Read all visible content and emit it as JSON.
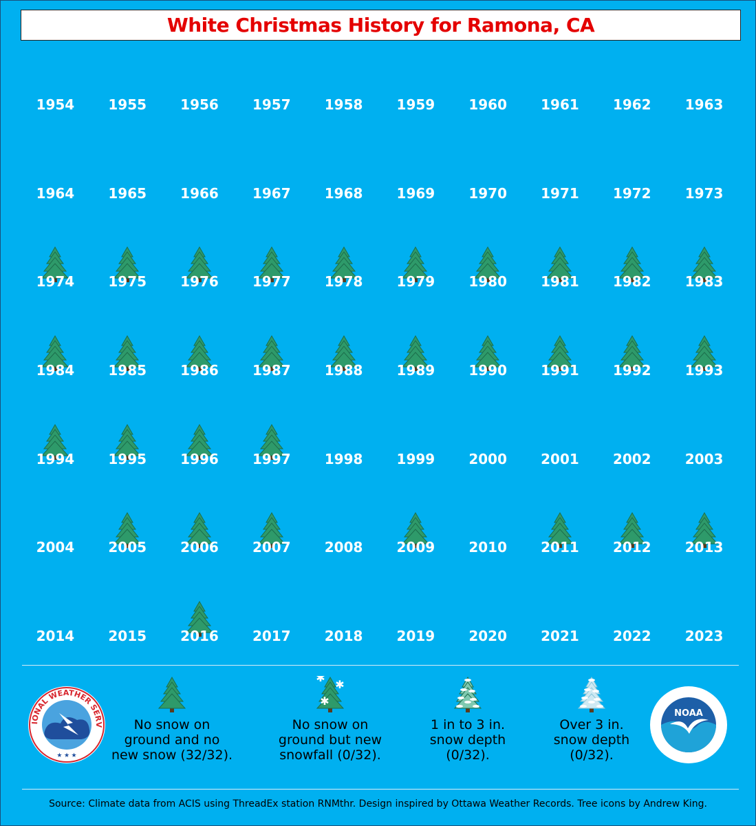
{
  "title": "White Christmas History for Ramona, CA",
  "chart_data": {
    "type": "table",
    "columns": 10,
    "years": [
      1954,
      1955,
      1956,
      1957,
      1958,
      1959,
      1960,
      1961,
      1962,
      1963,
      1964,
      1965,
      1966,
      1967,
      1968,
      1969,
      1970,
      1971,
      1972,
      1973,
      1974,
      1975,
      1976,
      1977,
      1978,
      1979,
      1980,
      1981,
      1982,
      1983,
      1984,
      1985,
      1986,
      1987,
      1988,
      1989,
      1990,
      1991,
      1992,
      1993,
      1994,
      1995,
      1996,
      1997,
      1998,
      1999,
      2000,
      2001,
      2002,
      2003,
      2004,
      2005,
      2006,
      2007,
      2008,
      2009,
      2010,
      2011,
      2012,
      2013,
      2014,
      2015,
      2016,
      2017,
      2018,
      2019,
      2020,
      2021,
      2022,
      2023
    ],
    "category_by_year": {
      "1974": "no_snow",
      "1975": "no_snow",
      "1976": "no_snow",
      "1977": "no_snow",
      "1978": "no_snow",
      "1979": "no_snow",
      "1980": "no_snow",
      "1981": "no_snow",
      "1982": "no_snow",
      "1983": "no_snow",
      "1984": "no_snow",
      "1985": "no_snow",
      "1986": "no_snow",
      "1987": "no_snow",
      "1988": "no_snow",
      "1989": "no_snow",
      "1990": "no_snow",
      "1991": "no_snow",
      "1992": "no_snow",
      "1993": "no_snow",
      "1994": "no_snow",
      "1995": "no_snow",
      "1996": "no_snow",
      "1997": "no_snow",
      "2005": "no_snow",
      "2006": "no_snow",
      "2007": "no_snow",
      "2009": "no_snow",
      "2011": "no_snow",
      "2012": "no_snow",
      "2013": "no_snow",
      "2016": "no_snow"
    },
    "legend": [
      {
        "key": "no_snow",
        "label": "No snow on ground and no new snow (32/32).",
        "count": 32,
        "icon": "green-tree-icon"
      },
      {
        "key": "new_snowfall",
        "label": "No snow on ground but new snowfall (0/32).",
        "count": 0,
        "icon": "snowflake-tree-icon"
      },
      {
        "key": "depth_1_3",
        "label": "1 in to 3 in. snow depth (0/32).",
        "count": 0,
        "icon": "light-snow-tree-icon"
      },
      {
        "key": "depth_over_3",
        "label": "Over 3 in. snow depth (0/32).",
        "count": 0,
        "icon": "heavy-snow-tree-icon"
      }
    ]
  },
  "legend_lines": [
    [
      "No snow on",
      "ground and no",
      "new snow (32/32)."
    ],
    [
      "No snow on",
      "ground but new",
      "snowfall (0/32)."
    ],
    [
      "1 in to 3 in.",
      "snow depth",
      "(0/32)."
    ],
    [
      "Over 3 in.",
      "snow depth",
      "(0/32)."
    ]
  ],
  "logos": {
    "left": "NATIONAL WEATHER SERVICE",
    "right": "NOAA"
  },
  "source": "Source: Climate data from ACIS using ThreadEx station RNMthr. Design inspired by Ottawa Weather Records. Tree icons by Andrew King.",
  "colors": {
    "background": "#00b0f0",
    "title": "#e40000",
    "tree": "#2e8b57"
  }
}
